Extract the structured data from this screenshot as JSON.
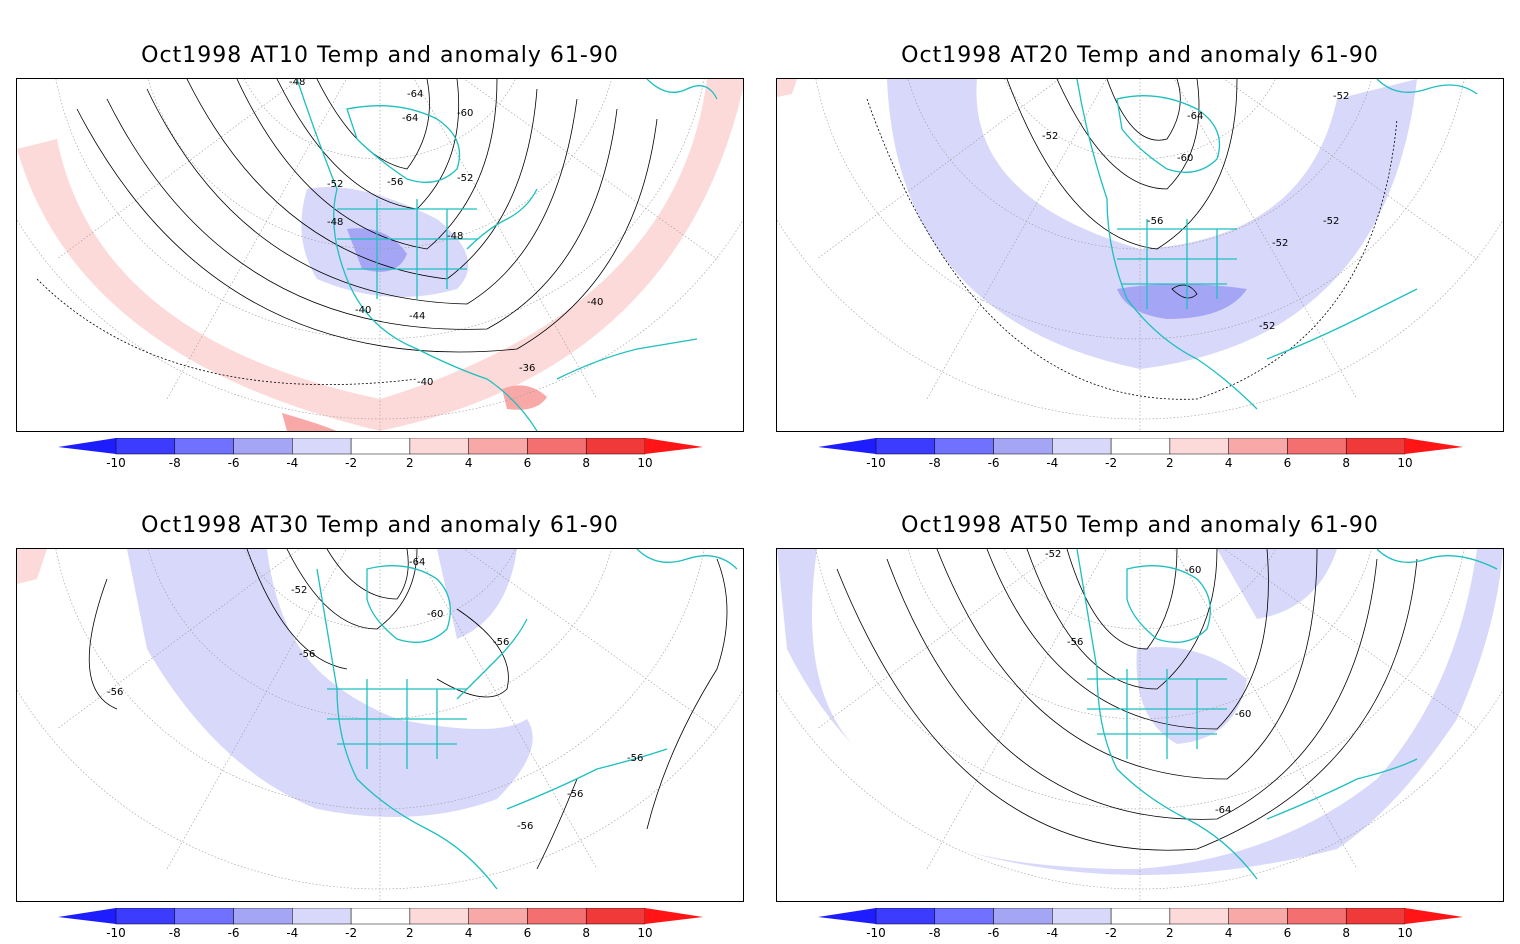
{
  "panels": [
    {
      "title": "Oct1998 AT10 Temp and anomaly 61-90",
      "contour_labels": [
        "-48",
        "-64",
        "-64",
        "-60",
        "-52",
        "-56",
        "-52",
        "-48",
        "-48",
        "-44",
        "-40",
        "-40",
        "-40",
        "-36"
      ],
      "anomaly_shading": "mostly positive (warm) ring at low latitudes, negative (cool) over central North America"
    },
    {
      "title": "Oct1998 AT20 Temp and anomaly 61-90",
      "contour_labels": [
        "-52",
        "-52",
        "-64",
        "-60",
        "-56",
        "-52",
        "-52",
        "-52"
      ],
      "anomaly_shading": "negative (cool) band across mid-latitudes and Gulf of Mexico"
    },
    {
      "title": "Oct1998 AT30 Temp and anomaly 61-90",
      "contour_labels": [
        "-64",
        "-52",
        "-60",
        "-56",
        "-56",
        "-56",
        "-56",
        "-56",
        "-56"
      ],
      "anomaly_shading": "negative (cool) band over western Pacific coast and North America"
    },
    {
      "title": "Oct1998 AT50 Temp and anomaly 61-90",
      "contour_labels": [
        "-52",
        "-60",
        "-56",
        "-60",
        "-64"
      ],
      "anomaly_shading": "weak negative (cool) band over outer ring and central North America"
    }
  ],
  "colorbar": {
    "labels": [
      "-10",
      "-8",
      "-6",
      "-4",
      "-2",
      "2",
      "4",
      "6",
      "8",
      "10"
    ],
    "colors": [
      "#1d1dff",
      "#3c3cff",
      "#7171ff",
      "#a5a5f5",
      "#d8d8fa",
      "#ffffff",
      "#fddada",
      "#f9a8a8",
      "#f46f6f",
      "#f03a3a",
      "#ff1515"
    ]
  },
  "colors": {
    "coast": "#1ebfbf",
    "warm_light": "#fddada",
    "warm_mid": "#f9a8a8",
    "cool_light": "#d8d8fa",
    "cool_mid": "#a5a5f5"
  }
}
